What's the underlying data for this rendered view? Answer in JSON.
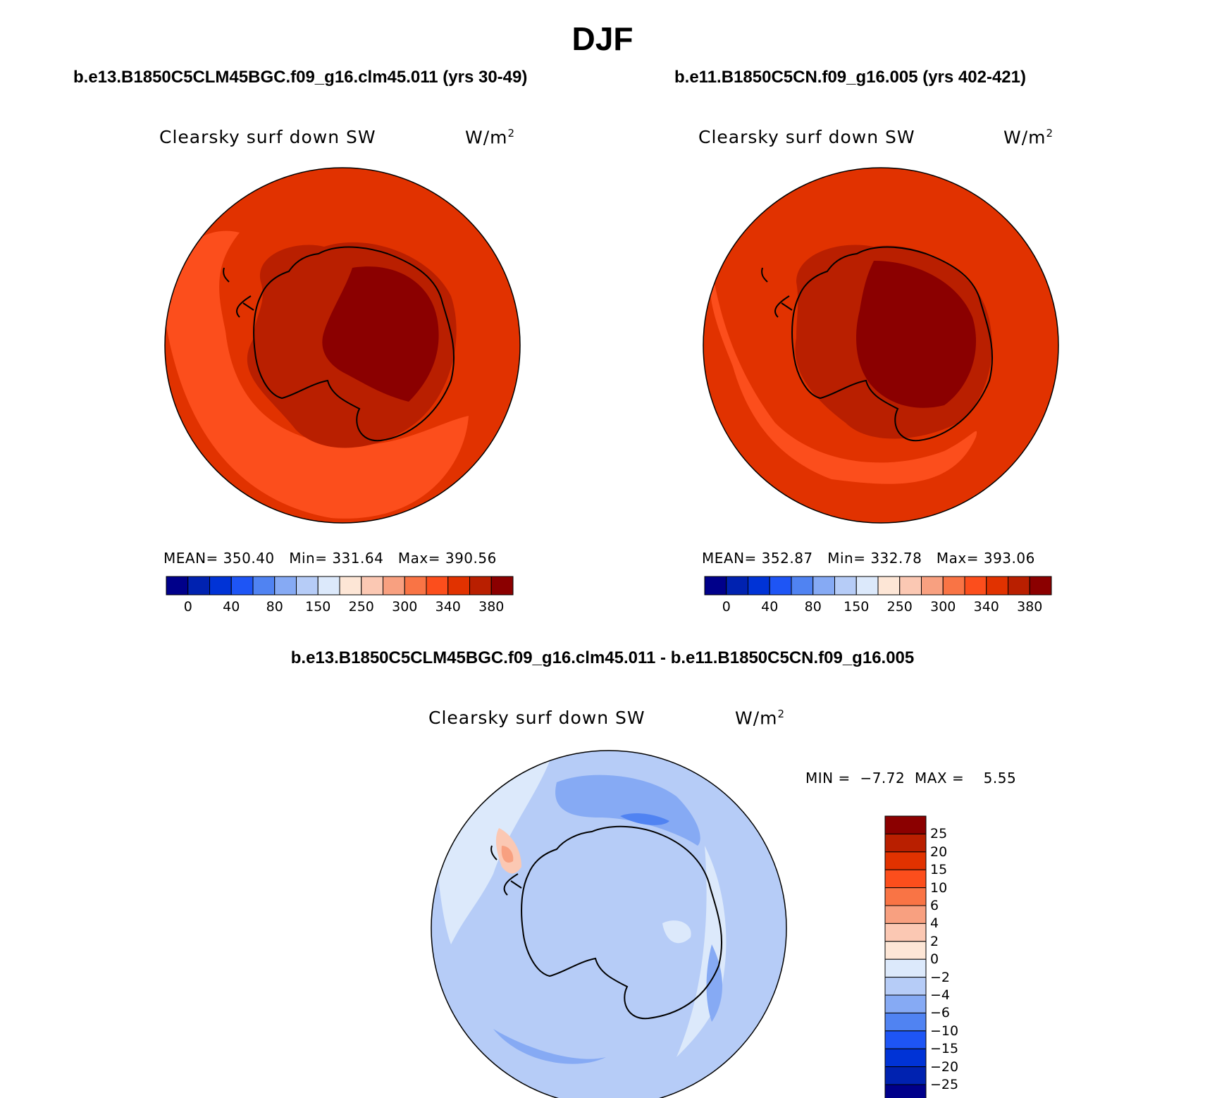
{
  "title": "DJF",
  "panels": {
    "left": {
      "case": "b.e13.B1850C5CLM45BGC.f09_g16.clm45.011 (yrs 30-49)",
      "variable": "Clearsky surf down SW",
      "units": "W/m",
      "units_sup": "2",
      "stats": {
        "mean_label": "MEAN=",
        "mean": "350.40",
        "min_label": "Min=",
        "min": "331.64",
        "max_label": "Max=",
        "max": "390.56"
      }
    },
    "right": {
      "case": "b.e11.B1850C5CN.f09_g16.005 (yrs 402-421)",
      "variable": "Clearsky surf down SW",
      "units": "W/m",
      "units_sup": "2",
      "stats": {
        "mean_label": "MEAN=",
        "mean": "352.87",
        "min_label": "Min=",
        "min": "332.78",
        "max_label": "Max=",
        "max": "393.06"
      }
    },
    "diff": {
      "case": "b.e13.B1850C5CLM45BGC.f09_g16.clm45.011 - b.e11.B1850C5CN.f09_g16.005",
      "variable": "Clearsky surf down SW",
      "units": "W/m",
      "units_sup": "2",
      "stats": {
        "min_label": "MIN =",
        "min": "−7.72",
        "max_label": "MAX =",
        "max": "5.55"
      }
    }
  },
  "colorbar_abs": {
    "colors": [
      "#00008a",
      "#0022b0",
      "#0033d6",
      "#1e55f5",
      "#5083f2",
      "#86aaf4",
      "#b6ccf7",
      "#dce9fb",
      "#fde6d6",
      "#fbc8b3",
      "#f8a080",
      "#f97445",
      "#fc4e1c",
      "#e13200",
      "#b91f00",
      "#8b0000"
    ],
    "labels": [
      "0",
      "40",
      "80",
      "150",
      "250",
      "300",
      "340",
      "380"
    ]
  },
  "colorbar_diff": {
    "colors_top_to_bottom": [
      "#8b0000",
      "#b91f00",
      "#e13200",
      "#fc4e1c",
      "#f97445",
      "#f8a080",
      "#fbc8b3",
      "#fde6d6",
      "#dce9fb",
      "#b6ccf7",
      "#86aaf4",
      "#5083f2",
      "#1e55f5",
      "#0033d6",
      "#0022b0",
      "#00008a"
    ],
    "labels_top_to_bottom": [
      "25",
      "20",
      "15",
      "10",
      "6",
      "4",
      "2",
      "0",
      "−2",
      "−4",
      "−6",
      "−10",
      "−15",
      "−20",
      "−25"
    ]
  },
  "map_colors": {
    "ocean_abs": "#e13200",
    "ocean_low_abs": "#fc4e1c",
    "land_mid_abs": "#b91f00",
    "land_high_abs": "#8b0000",
    "diff_base": "#b6ccf7",
    "diff_light": "#dce9fb",
    "diff_mid": "#86aaf4",
    "diff_strong": "#5083f2",
    "diff_positive": "#fbc8b3",
    "diff_positive_strong": "#f8a080",
    "coastline": "#000000"
  }
}
